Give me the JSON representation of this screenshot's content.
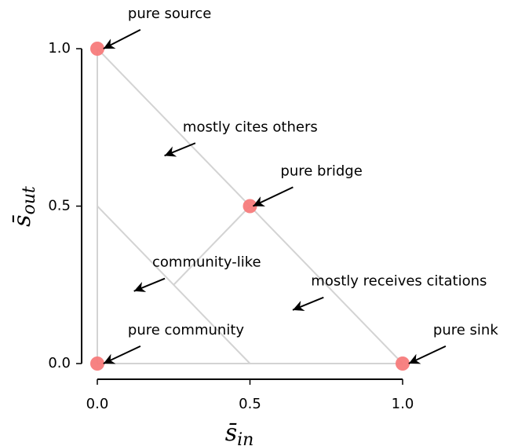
{
  "chart_data": {
    "type": "scatter",
    "x": [
      0,
      0.5,
      1,
      0
    ],
    "y": [
      1,
      0.5,
      0,
      0
    ],
    "color": "#f77b7b",
    "xlim": [
      0,
      1
    ],
    "ylim": [
      0,
      1
    ],
    "xticks": [
      {
        "value": 0,
        "label": "0.0"
      },
      {
        "value": 0.5,
        "label": "0.5"
      },
      {
        "value": 1,
        "label": "1.0"
      }
    ],
    "yticks": [
      {
        "value": 0,
        "label": "0.0"
      },
      {
        "value": 0.5,
        "label": "0.5"
      },
      {
        "value": 1,
        "label": "1.0"
      }
    ],
    "xlabel": {
      "base": "s̄",
      "sub": "in"
    },
    "ylabel": {
      "base": "s̄",
      "sub": "out"
    },
    "lines": [
      [
        [
          0,
          0
        ],
        [
          1,
          0
        ]
      ],
      [
        [
          0,
          0
        ],
        [
          0,
          1
        ]
      ],
      [
        [
          0,
          1
        ],
        [
          1,
          0
        ]
      ],
      [
        [
          0,
          0.5
        ],
        [
          0.5,
          0
        ]
      ],
      [
        [
          0.5,
          0.5
        ],
        [
          0.25,
          0.25
        ]
      ]
    ],
    "line_color": "#d3d3d3",
    "annotations": [
      {
        "text": "pure source",
        "xy": [
          0.02,
          1.0
        ],
        "xytext": [
          0.1,
          1.11
        ]
      },
      {
        "text": "mostly cites others",
        "xy": [
          0.22,
          0.66
        ],
        "xytext": [
          0.28,
          0.75
        ]
      },
      {
        "text": "pure bridge",
        "xy": [
          0.51,
          0.5
        ],
        "xytext": [
          0.6,
          0.61
        ]
      },
      {
        "text": "community-like",
        "xy": [
          0.12,
          0.23
        ],
        "xytext": [
          0.18,
          0.32
        ]
      },
      {
        "text": "mostly receives citations",
        "xy": [
          0.64,
          0.17
        ],
        "xytext": [
          0.7,
          0.26
        ]
      },
      {
        "text": "pure community",
        "xy": [
          0.02,
          0.0
        ],
        "xytext": [
          0.1,
          0.105
        ]
      },
      {
        "text": "pure sink",
        "xy": [
          1.02,
          0.0
        ],
        "xytext": [
          1.1,
          0.105
        ]
      }
    ]
  }
}
